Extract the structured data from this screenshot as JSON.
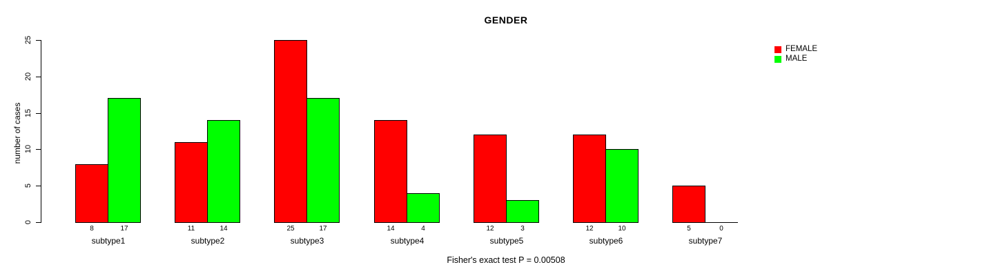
{
  "chart": {
    "title": "GENDER",
    "ylabel": "number of cases",
    "caption": "Fisher's exact test P = 0.00508",
    "background_color": "#ffffff",
    "axis_color": "#000000"
  },
  "chart_data": {
    "type": "bar",
    "title": "GENDER",
    "xlabel": "",
    "ylabel": "number of cases",
    "categories": [
      "subtype1",
      "subtype2",
      "subtype3",
      "subtype4",
      "subtype5",
      "subtype6",
      "subtype7"
    ],
    "series": [
      {
        "name": "FEMALE",
        "color": "#ff0000",
        "values": [
          8,
          11,
          25,
          14,
          12,
          12,
          5
        ]
      },
      {
        "name": "MALE",
        "color": "#00ff00",
        "values": [
          17,
          14,
          17,
          4,
          3,
          10,
          0
        ]
      }
    ],
    "ylim": [
      0,
      25
    ],
    "yticks": [
      0,
      5,
      10,
      15,
      20,
      25
    ],
    "grid": false,
    "bar_value_labels": true,
    "legend_position": "top-right",
    "annotation": "Fisher's exact test P = 0.00508"
  }
}
